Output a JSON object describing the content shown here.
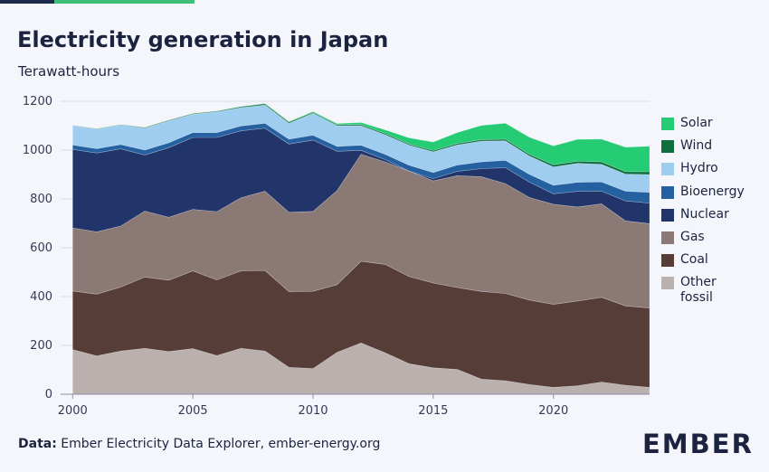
{
  "title": "Electricity generation in Japan",
  "subtitle": "Terawatt-hours",
  "source_label": "Data:",
  "source_text": "Ember Electricity Data Explorer, ember-energy.org",
  "logo": "EMBER",
  "chart_data": {
    "type": "area",
    "stacked": true,
    "title": "Electricity generation in Japan",
    "ylabel": "Terawatt-hours",
    "ylim": [
      0,
      1200
    ],
    "xlim": [
      1999.5,
      2024
    ],
    "yticks": [
      0,
      200,
      400,
      600,
      800,
      1000,
      1200
    ],
    "xticks": [
      2000,
      2005,
      2010,
      2015,
      2020
    ],
    "grid": true,
    "legend_position": "right",
    "x": [
      2000,
      2001,
      2002,
      2003,
      2004,
      2005,
      2006,
      2007,
      2008,
      2009,
      2010,
      2011,
      2012,
      2013,
      2014,
      2015,
      2016,
      2017,
      2018,
      2019,
      2020,
      2021,
      2022,
      2023,
      2024
    ],
    "series": [
      {
        "name": "Other fossil",
        "color": "#bab1ae",
        "values": [
          183,
          157,
          177,
          188,
          175,
          187,
          158,
          188,
          177,
          110,
          105,
          172,
          210,
          170,
          125,
          108,
          102,
          62,
          55,
          40,
          28,
          35,
          50,
          37,
          28
        ]
      },
      {
        "name": "Coal",
        "color": "#573d37",
        "values": [
          240,
          253,
          262,
          292,
          292,
          318,
          310,
          317,
          330,
          310,
          317,
          277,
          335,
          362,
          357,
          348,
          335,
          359,
          358,
          346,
          340,
          347,
          347,
          325,
          325
        ]
      },
      {
        "name": "Gas",
        "color": "#8b7975",
        "values": [
          258,
          255,
          250,
          270,
          258,
          252,
          280,
          300,
          325,
          325,
          327,
          385,
          438,
          420,
          432,
          418,
          458,
          470,
          450,
          420,
          410,
          385,
          383,
          348,
          346
        ]
      },
      {
        "name": "Nuclear",
        "color": "#21356b",
        "values": [
          322,
          323,
          316,
          230,
          285,
          295,
          304,
          274,
          258,
          280,
          292,
          161,
          16,
          9,
          0,
          9,
          18,
          33,
          65,
          63,
          43,
          64,
          52,
          82,
          84
        ]
      },
      {
        "name": "Bioenergy",
        "color": "#2561a0",
        "values": [
          18,
          18,
          18,
          20,
          20,
          20,
          20,
          20,
          20,
          20,
          20,
          20,
          21,
          22,
          24,
          25,
          26,
          28,
          30,
          32,
          35,
          37,
          38,
          40,
          44
        ]
      },
      {
        "name": "Hydro",
        "color": "#9fcdf0",
        "values": [
          80,
          80,
          80,
          90,
          90,
          75,
          85,
          75,
          75,
          65,
          90,
          85,
          80,
          80,
          82,
          85,
          82,
          85,
          80,
          75,
          75,
          78,
          72,
          70,
          73
        ]
      },
      {
        "name": "Wind",
        "color": "#0f6e3d",
        "values": [
          1,
          2,
          2,
          3,
          3,
          3,
          3,
          4,
          5,
          5,
          4,
          4,
          5,
          5,
          5,
          5,
          6,
          6,
          7,
          7,
          9,
          9,
          10,
          10,
          11
        ]
      },
      {
        "name": "Solar",
        "color": "#26cc74",
        "values": [
          0,
          0,
          0,
          0,
          0,
          0,
          0,
          1,
          1,
          2,
          3,
          5,
          8,
          15,
          25,
          35,
          45,
          58,
          65,
          70,
          77,
          89,
          93,
          100,
          105
        ]
      }
    ]
  }
}
